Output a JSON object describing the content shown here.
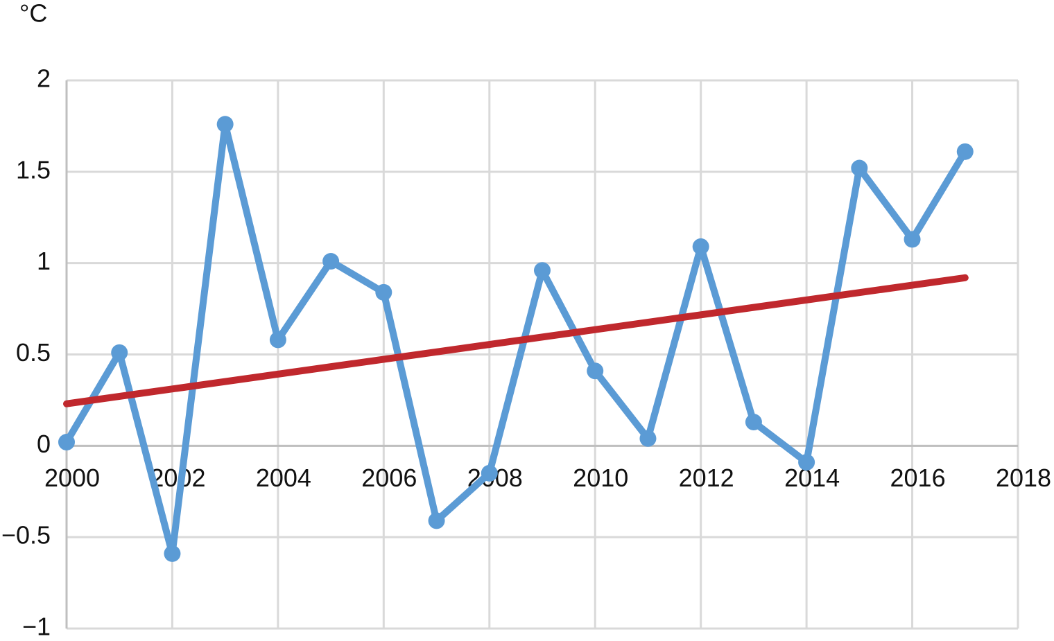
{
  "chart_data": {
    "type": "line",
    "ylabel": "°C",
    "xlim": [
      2000,
      2018
    ],
    "xticks": [
      2000,
      2002,
      2004,
      2006,
      2008,
      2010,
      2012,
      2014,
      2016,
      2018
    ],
    "ylim": [
      -1,
      2
    ],
    "yticks": [
      {
        "value": -1,
        "label": "−1"
      },
      {
        "value": -0.5,
        "label": "−0.5"
      },
      0,
      0.5,
      1,
      1.5,
      2
    ],
    "grid": true,
    "series": [
      {
        "color": "#5b9bd5",
        "markers": true,
        "x": [
          2000,
          2001,
          2002,
          2003,
          2004,
          2005,
          2006,
          2007,
          2008,
          2009,
          2010,
          2011,
          2012,
          2013,
          2014,
          2015,
          2016,
          2017
        ],
        "values": [
          0.02,
          0.51,
          -0.59,
          1.76,
          0.58,
          1.01,
          0.84,
          -0.41,
          -0.15,
          0.96,
          0.41,
          0.04,
          1.09,
          0.13,
          -0.09,
          1.52,
          1.13,
          1.61
        ]
      },
      {
        "color": "#c0282d",
        "markers": false,
        "x": [
          2000,
          2017
        ],
        "values": [
          0.23,
          0.92
        ]
      }
    ]
  }
}
